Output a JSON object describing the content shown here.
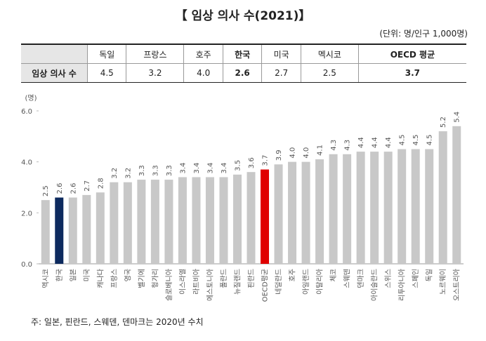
{
  "title": "【 임상 의사 수(2021)】",
  "unit": "(단위: 명/인구 1,000명)",
  "table": {
    "header": [
      "",
      "독일",
      "프랑스",
      "호주",
      "한국",
      "미국",
      "멕시코",
      "OECD 평균"
    ],
    "rows": [
      [
        "임상 의사 수",
        "4.5",
        "3.2",
        "4.0",
        "2.6",
        "2.7",
        "2.5",
        "3.7"
      ]
    ]
  },
  "note": "주: 일본, 핀란드, 스웨덴, 덴마크는 2020년 수치",
  "chart_data": {
    "type": "bar",
    "y_label": "(명)",
    "categories": [
      "멕시코",
      "한국",
      "일본",
      "미국",
      "캐나다",
      "프랑스",
      "영국",
      "벨기에",
      "헝가리",
      "슬로베니아",
      "이스라엘",
      "라트비아",
      "에스토니아",
      "폴란드",
      "뉴질랜드",
      "핀란드",
      "OECD평균",
      "네덜란드",
      "호주",
      "아일랜드",
      "이탈리아",
      "체코",
      "스웨덴",
      "덴마크",
      "아이슬란드",
      "스위스",
      "리투아니아",
      "스페인",
      "독일",
      "노르웨이",
      "오스트리아"
    ],
    "values": [
      2.5,
      2.6,
      2.6,
      2.7,
      2.8,
      3.2,
      3.2,
      3.3,
      3.3,
      3.3,
      3.4,
      3.4,
      3.4,
      3.4,
      3.5,
      3.6,
      3.7,
      3.9,
      4.0,
      4.0,
      4.1,
      4.3,
      4.3,
      4.4,
      4.4,
      4.4,
      4.5,
      4.5,
      4.5,
      5.2,
      5.4
    ],
    "value_labels": [
      "2.5",
      "2.6",
      "2.6",
      "2.7",
      "2.8",
      "3.2",
      "3.2",
      "3.3",
      "3.3",
      "3.3",
      "3.4",
      "3.4",
      "3.4",
      "3.4",
      "3.5",
      "3.6",
      "3.7",
      "3.9",
      "4.0",
      "4.0",
      "4.1",
      "4.3",
      "4.3",
      "4.4",
      "4.4",
      "4.4",
      "4.5",
      "4.5",
      "4.5",
      "5.2",
      "5.4"
    ],
    "colors": [
      "#c8c8c8",
      "#0d2a5e",
      "#c8c8c8",
      "#c8c8c8",
      "#c8c8c8",
      "#c8c8c8",
      "#c8c8c8",
      "#c8c8c8",
      "#c8c8c8",
      "#c8c8c8",
      "#c8c8c8",
      "#c8c8c8",
      "#c8c8c8",
      "#c8c8c8",
      "#c8c8c8",
      "#c8c8c8",
      "#e00000",
      "#c8c8c8",
      "#c8c8c8",
      "#c8c8c8",
      "#c8c8c8",
      "#c8c8c8",
      "#c8c8c8",
      "#c8c8c8",
      "#c8c8c8",
      "#c8c8c8",
      "#c8c8c8",
      "#c8c8c8",
      "#c8c8c8",
      "#c8c8c8",
      "#c8c8c8"
    ],
    "ylim": [
      0,
      6
    ],
    "yticks": [
      {
        "value": 0,
        "label": "0.0"
      },
      {
        "value": 2,
        "label": "2.0"
      },
      {
        "value": 4,
        "label": "4.0"
      },
      {
        "value": 6,
        "label": "6.0"
      }
    ],
    "grid": false
  }
}
